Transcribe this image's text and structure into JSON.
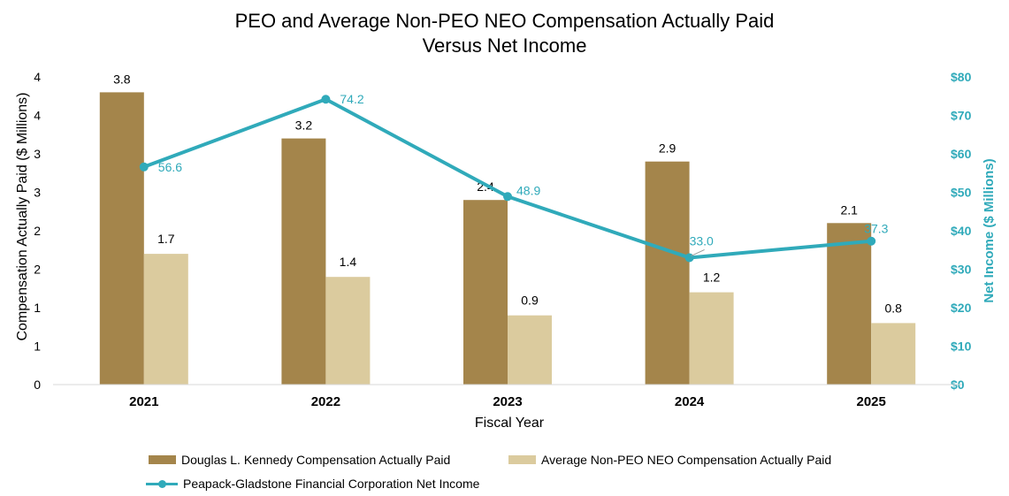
{
  "chart_data": {
    "type": "bar",
    "title": "PEO and Average Non-PEO NEO Compensation Actually Paid",
    "subtitle": "Versus Net Income",
    "xlabel": "Fiscal Year",
    "ylabel": "Compensation Actually Paid ($ Millions)",
    "y2label": "Net Income ($ Millions)",
    "categories": [
      "2021",
      "2022",
      "2023",
      "2024",
      "2025"
    ],
    "ylim": [
      0,
      4
    ],
    "yticks": [
      "0",
      "1",
      "1",
      "2",
      "2",
      "3",
      "3",
      "4",
      "4"
    ],
    "y2lim": [
      0,
      80
    ],
    "y2ticks": [
      "$0",
      "$10",
      "$20",
      "$30",
      "$40",
      "$50",
      "$60",
      "$70",
      "$80"
    ],
    "series": [
      {
        "name": "Douglas L. Kennedy Compensation Actually Paid",
        "type": "bar",
        "axis": "left",
        "values": [
          3.8,
          3.2,
          2.4,
          2.9,
          2.1
        ],
        "bar_heights": [
          3.8,
          3.2,
          2.4,
          2.9,
          2.1
        ],
        "color": "#A4854B"
      },
      {
        "name": "Average Non-PEO NEO Compensation Actually Paid",
        "type": "bar",
        "axis": "left",
        "values": [
          1.7,
          1.4,
          0.9,
          1.2,
          0.8
        ],
        "color": "#DBCB9E"
      },
      {
        "name": "Peapack-Gladstone Financial Corporation Net Income",
        "type": "line",
        "axis": "right",
        "values": [
          56.6,
          74.2,
          48.9,
          33.0,
          37.3
        ],
        "color": "#30AABA"
      }
    ],
    "grid": false,
    "legend": "bottom"
  }
}
